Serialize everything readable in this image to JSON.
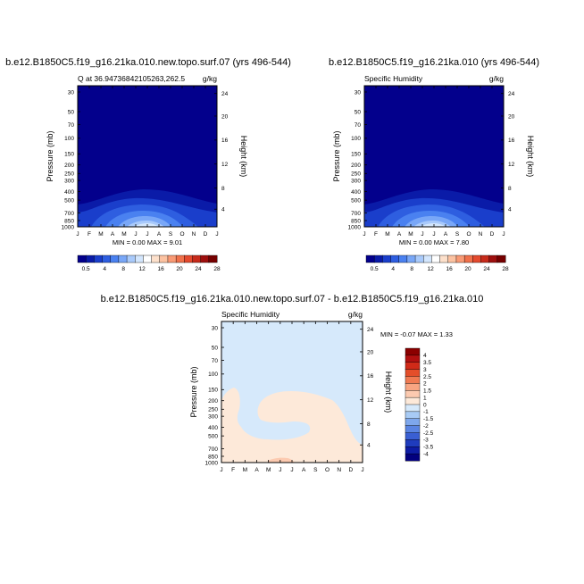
{
  "panels": [
    {
      "case_title": "b.e12.B1850C5.f19_g16.21ka.010.new.topo.surf.07 (yrs 496-544)",
      "left_label": "Q at 36.94736842105263,262.5",
      "right_label": "g/kg",
      "ylabel": "Pressure (mb)",
      "y2label": "Height (km)",
      "stats": "MIN =   0.00 MAX =   9.01"
    },
    {
      "case_title": "b.e12.B1850C5.f19_g16.21ka.010 (yrs 496-544)",
      "left_label": "Specific Humidity",
      "right_label": "g/kg",
      "ylabel": "Pressure (mb)",
      "y2label": "Height (km)",
      "stats": "MIN =   0.00 MAX =   7.80"
    },
    {
      "case_title": "b.e12.B1850C5.f19_g16.21ka.010.new.topo.surf.07 - b.e12.B1850C5.f19_g16.21ka.010",
      "left_label": "Specific Humidity",
      "right_label": "g/kg",
      "ylabel": "Pressure (mb)",
      "y2label": "Height (km)",
      "stats": "MIN =  -0.07 MAX =   1.33"
    }
  ],
  "chart_data": [
    {
      "type": "heatmap",
      "title": "b.e12.B1850C5.f19_g16.21ka.010.new.topo.surf.07 (yrs 496-544)",
      "subtitle": "Q at 36.94736842105263,262.5",
      "units": "g/kg",
      "x_ticks": [
        "J",
        "F",
        "M",
        "A",
        "M",
        "J",
        "J",
        "A",
        "S",
        "O",
        "N",
        "D",
        "J"
      ],
      "y_ticks": [
        "30",
        "50",
        "70",
        "100",
        "150",
        "200",
        "250",
        "300",
        "400",
        "500",
        "700",
        "850",
        "1000"
      ],
      "y2_ticks": [
        "24",
        "20",
        "16",
        "12",
        "8",
        "4"
      ],
      "ylabel": "Pressure (mb)",
      "y2label": "Height (km)",
      "min": 0.0,
      "max": 9.01,
      "colorbar": {
        "labels": [
          "0.5",
          "4",
          "8",
          "12",
          "16",
          "20",
          "24",
          "28"
        ],
        "colors": [
          "#03008C",
          "#0A1BA8",
          "#1A3ECB",
          "#2E5EE0",
          "#4A81F0",
          "#79A7F7",
          "#A9CAFB",
          "#D3E6FD",
          "#FFFFFF",
          "#FDE0CB",
          "#FCC2A1",
          "#F99A75",
          "#F0714B",
          "#E44A2E",
          "#C72B1B",
          "#9E0F0E",
          "#760000"
        ]
      }
    },
    {
      "type": "heatmap",
      "title": "b.e12.B1850C5.f19_g16.21ka.010 (yrs 496-544)",
      "subtitle": "Specific Humidity",
      "units": "g/kg",
      "x_ticks": [
        "J",
        "F",
        "M",
        "A",
        "M",
        "J",
        "J",
        "A",
        "S",
        "O",
        "N",
        "D",
        "J"
      ],
      "y_ticks": [
        "30",
        "50",
        "70",
        "100",
        "150",
        "200",
        "250",
        "300",
        "400",
        "500",
        "700",
        "850",
        "1000"
      ],
      "y2_ticks": [
        "24",
        "20",
        "16",
        "12",
        "8",
        "4"
      ],
      "ylabel": "Pressure (mb)",
      "y2label": "Height (km)",
      "min": 0.0,
      "max": 7.8,
      "colorbar": {
        "labels": [
          "0.5",
          "4",
          "8",
          "12",
          "16",
          "20",
          "24",
          "28"
        ],
        "colors": [
          "#03008C",
          "#0A1BA8",
          "#1A3ECB",
          "#2E5EE0",
          "#4A81F0",
          "#79A7F7",
          "#A9CAFB",
          "#D3E6FD",
          "#FFFFFF",
          "#FDE0CB",
          "#FCC2A1",
          "#F99A75",
          "#F0714B",
          "#E44A2E",
          "#C72B1B",
          "#9E0F0E",
          "#760000"
        ]
      }
    },
    {
      "type": "heatmap",
      "title": "b.e12.B1850C5.f19_g16.21ka.010.new.topo.surf.07 - b.e12.B1850C5.f19_g16.21ka.010",
      "subtitle": "Specific Humidity",
      "units": "g/kg",
      "x_ticks": [
        "J",
        "F",
        "M",
        "A",
        "M",
        "J",
        "J",
        "A",
        "S",
        "O",
        "N",
        "D",
        "J"
      ],
      "y_ticks": [
        "30",
        "50",
        "70",
        "100",
        "150",
        "200",
        "250",
        "300",
        "400",
        "500",
        "700",
        "850",
        "1000"
      ],
      "y2_ticks": [
        "24",
        "20",
        "16",
        "12",
        "8",
        "4"
      ],
      "ylabel": "Pressure (mb)",
      "y2label": "Height (km)",
      "min": -0.07,
      "max": 1.33,
      "colorbar": {
        "labels": [
          "4",
          "3.5",
          "3",
          "2.5",
          "2",
          "1.5",
          "1",
          "0",
          "-1",
          "-1.5",
          "-2",
          "-2.5",
          "-3",
          "-3.5",
          "-4"
        ],
        "colors": [
          "#8B0000",
          "#B11010",
          "#D02A18",
          "#E44E2A",
          "#F07A52",
          "#F8A582",
          "#FCCAB0",
          "#FDE9D9",
          "#D6E9FB",
          "#A8CBF5",
          "#7EA7EC",
          "#5A84E2",
          "#3A5FD2",
          "#1F3CBD",
          "#0E1CA4",
          "#03007E"
        ]
      }
    }
  ]
}
